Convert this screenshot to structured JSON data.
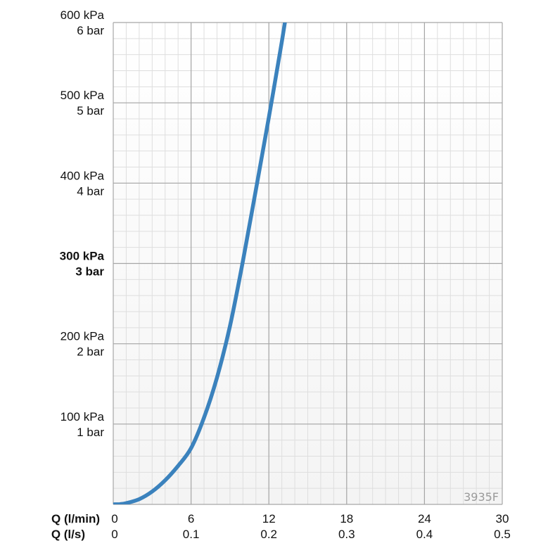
{
  "chart_data": {
    "type": "line",
    "series": [
      {
        "x": [
          0,
          0.5,
          1,
          2,
          3,
          4,
          5,
          6,
          7,
          8,
          9,
          10,
          11,
          12,
          13,
          13.5
        ],
        "y": [
          0,
          0.3,
          1.5,
          6.5,
          16,
          30,
          48,
          70,
          108,
          158,
          222,
          303,
          392,
          482,
          576,
          628
        ]
      }
    ],
    "y_unit_primary": "kPa",
    "y_unit_secondary": "bar",
    "xlim": [
      0,
      30
    ],
    "ylim": [
      0,
      600
    ],
    "x_ticks_primary": [
      "0",
      "6",
      "12",
      "18",
      "24",
      "30"
    ],
    "x_ticks_secondary": [
      "0",
      "0.1",
      "0.2",
      "0.3",
      "0.4",
      "0.5"
    ],
    "y_ticks": [
      {
        "value": 100,
        "primary": "100 kPa",
        "secondary": "1 bar",
        "bold": false
      },
      {
        "value": 200,
        "primary": "200 kPa",
        "secondary": "2 bar",
        "bold": false
      },
      {
        "value": 300,
        "primary": "300 kPa",
        "secondary": "3 bar",
        "bold": true
      },
      {
        "value": 400,
        "primary": "400 kPa",
        "secondary": "4 bar",
        "bold": false
      },
      {
        "value": 500,
        "primary": "500 kPa",
        "secondary": "5 bar",
        "bold": false
      },
      {
        "value": 600,
        "primary": "600 kPa",
        "secondary": "6 bar",
        "bold": false
      }
    ],
    "xlabel_primary": "Q (l/min)",
    "xlabel_secondary": "Q (l/s)",
    "annotation": "3935F",
    "grid": true,
    "colors": {
      "series": "#3b82bd",
      "major_grid": "#a6a6a6",
      "minor_grid": "#dedede",
      "background_gradient": [
        "#ffffff",
        "#f4f4f4"
      ]
    }
  }
}
